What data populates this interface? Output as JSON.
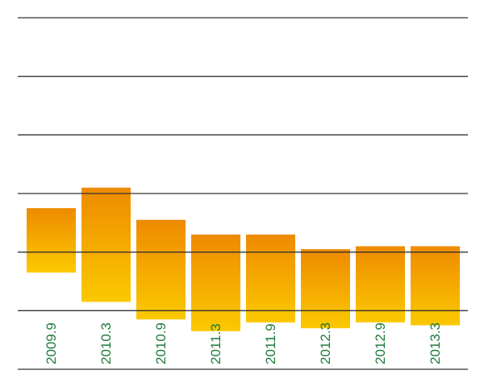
{
  "chart_data": {
    "type": "floating-bar",
    "categories": [
      "2009.9",
      "2010.3",
      "2010.9",
      "2011.3",
      "2011.9",
      "2012.3",
      "2012.9",
      "2013.3"
    ],
    "values": [
      [
        1.65,
        2.75
      ],
      [
        1.15,
        3.1
      ],
      [
        0.85,
        2.55
      ],
      [
        0.65,
        2.3
      ],
      [
        0.8,
        2.3
      ],
      [
        0.7,
        2.05
      ],
      [
        0.8,
        2.1
      ],
      [
        0.75,
        2.1
      ]
    ],
    "ylim": [
      0,
      6
    ],
    "yticks": [
      0,
      1,
      2,
      3,
      4,
      5,
      6
    ],
    "grid": true
  }
}
